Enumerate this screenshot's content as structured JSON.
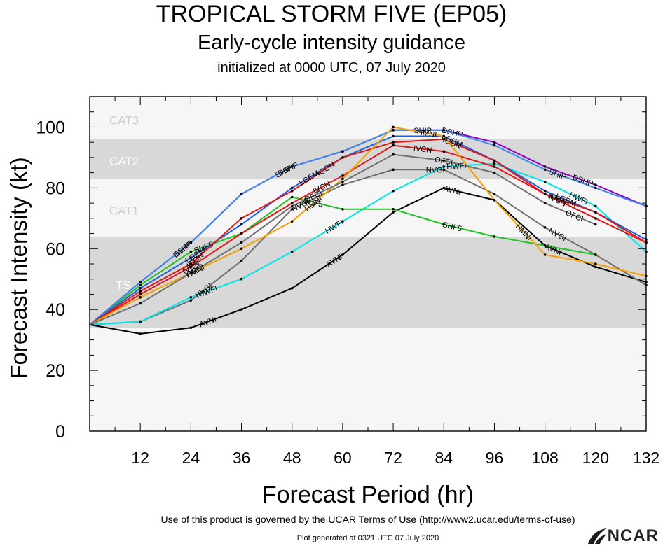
{
  "header": {
    "title": "TROPICAL STORM FIVE (EP05)",
    "subtitle": "Early-cycle intensity guidance",
    "init": "initialized at 0000 UTC, 07 July 2020"
  },
  "footer": {
    "terms": "Use of this product is governed by the UCAR Terms of Use (http://www2.ucar.edu/terms-of-use)",
    "generated": "Plot generated at 0321 UTC   07 July 2020",
    "logo_text": "NCAR"
  },
  "chart_data": {
    "type": "line",
    "title": "TROPICAL STORM FIVE (EP05)",
    "xlabel": "Forecast Period (hr)",
    "ylabel": "Forecast Intensity (kt)",
    "xlim": [
      0,
      132
    ],
    "ylim": [
      0,
      110
    ],
    "xticks": [
      12,
      24,
      36,
      48,
      60,
      72,
      84,
      96,
      108,
      120,
      132
    ],
    "yticks": [
      0,
      20,
      40,
      60,
      80,
      100
    ],
    "bands": [
      {
        "label": "TS",
        "from": 34,
        "to": 64,
        "color": "#d8d8d8"
      },
      {
        "label": "CAT1",
        "from": 64,
        "to": 83,
        "color": "#f6f6f6"
      },
      {
        "label": "CAT2",
        "from": 83,
        "to": 96,
        "color": "#d8d8d8"
      },
      {
        "label": "CAT3",
        "from": 96,
        "to": 110,
        "color": "#f6f6f6"
      }
    ],
    "below_band_color": "#f6f6f6",
    "series": [
      {
        "name": "AVNI",
        "color": "#000000",
        "x": [
          0,
          12,
          24,
          36,
          48,
          60,
          72,
          84,
          96,
          108,
          120,
          132
        ],
        "y": [
          35,
          32,
          34,
          40,
          47,
          58,
          72,
          80,
          76,
          61,
          54,
          49
        ]
      },
      {
        "name": "NVGI",
        "color": "#707070",
        "x": [
          0,
          12,
          24,
          36,
          48,
          60,
          72,
          84,
          96,
          108,
          120,
          132
        ],
        "y": [
          35,
          36,
          43,
          56,
          73,
          81,
          86,
          86,
          78,
          67,
          58,
          48
        ]
      },
      {
        "name": "HWFI",
        "color": "#00e5e5",
        "x": [
          0,
          12,
          24,
          36,
          48,
          60,
          72,
          84,
          96,
          108,
          120,
          132
        ],
        "y": [
          35,
          36,
          44,
          50,
          59,
          69,
          79,
          87,
          88,
          82,
          74,
          59
        ]
      },
      {
        "name": "SHF5",
        "color": "#22c422",
        "x": [
          0,
          12,
          24,
          36,
          48,
          60,
          72,
          84,
          96,
          108,
          120
        ],
        "y": [
          35,
          48,
          59,
          65,
          77,
          73,
          73,
          68,
          64,
          61,
          58
        ]
      },
      {
        "name": "DSHP",
        "color": "#9000c8",
        "x": [
          0,
          12,
          24,
          36,
          48,
          60,
          72,
          84,
          96,
          108,
          120,
          132
        ],
        "y": [
          35,
          49,
          62,
          78,
          87,
          92,
          99,
          99,
          95,
          87,
          81,
          74
        ]
      },
      {
        "name": "SHIP",
        "color": "#3a8af0",
        "x": [
          0,
          12,
          24,
          36,
          48,
          60,
          72,
          84,
          96,
          108,
          120,
          132
        ],
        "y": [
          35,
          49,
          62,
          78,
          87,
          92,
          99,
          99,
          94,
          86,
          80,
          74
        ]
      },
      {
        "name": "LGEM",
        "color": "#2060e0",
        "x": [
          0,
          12,
          24,
          36,
          48,
          60,
          72,
          84,
          96,
          108,
          120,
          132
        ],
        "y": [
          35,
          47,
          57,
          68,
          80,
          90,
          97,
          97,
          89,
          79,
          72,
          63
        ]
      },
      {
        "name": "ICON",
        "color": "#e01818",
        "x": [
          0,
          12,
          24,
          36,
          48,
          60,
          72,
          84,
          96,
          108,
          120,
          132
        ],
        "y": [
          35,
          46,
          55,
          70,
          79,
          90,
          95,
          96,
          89,
          78,
          72,
          62
        ]
      },
      {
        "name": "IVCN",
        "color": "#e01818",
        "x": [
          0,
          12,
          24,
          36,
          48,
          60,
          72,
          84,
          96,
          108,
          120,
          132
        ],
        "y": [
          35,
          45,
          54,
          65,
          75,
          84,
          94,
          92,
          87,
          78,
          70,
          62
        ]
      },
      {
        "name": "HMNI",
        "color": "#f5a000",
        "x": [
          0,
          12,
          24,
          36,
          48,
          60,
          72,
          84,
          96,
          108,
          120,
          132
        ],
        "y": [
          35,
          44,
          52,
          60,
          69,
          83,
          100,
          97,
          76,
          58,
          55,
          51
        ]
      },
      {
        "name": "OFCI",
        "color": "#707070",
        "x": [
          0,
          12,
          24,
          36,
          48,
          60,
          72,
          84,
          96,
          108,
          120
        ],
        "y": [
          35,
          42,
          52,
          62,
          74,
          82,
          91,
          89,
          85,
          75,
          68
        ]
      }
    ],
    "label_positions": [
      {
        "name": "AVNI",
        "x": [
          28,
          58,
          86,
          110
        ]
      },
      {
        "name": "NVGI",
        "x": [
          27,
          50,
          82,
          111
        ]
      },
      {
        "name": "HWFI",
        "x": [
          28,
          58,
          87,
          116
        ]
      },
      {
        "name": "SHF5",
        "x": [
          27,
          53,
          86
        ]
      },
      {
        "name": "DSHP",
        "x": [
          22,
          47,
          86,
          117
        ]
      },
      {
        "name": "SHIP",
        "x": [
          22,
          46,
          79,
          111
        ]
      },
      {
        "name": "LGEM",
        "x": [
          25,
          52,
          86,
          113
        ]
      },
      {
        "name": "ICON",
        "x": [
          25,
          56,
          86,
          111
        ]
      },
      {
        "name": "IVCN",
        "x": [
          24,
          55,
          79,
          111
        ]
      },
      {
        "name": "HMNI",
        "x": [
          25,
          53,
          80,
          103
        ]
      },
      {
        "name": "OFCI",
        "x": [
          25,
          53,
          84,
          115
        ]
      }
    ]
  }
}
